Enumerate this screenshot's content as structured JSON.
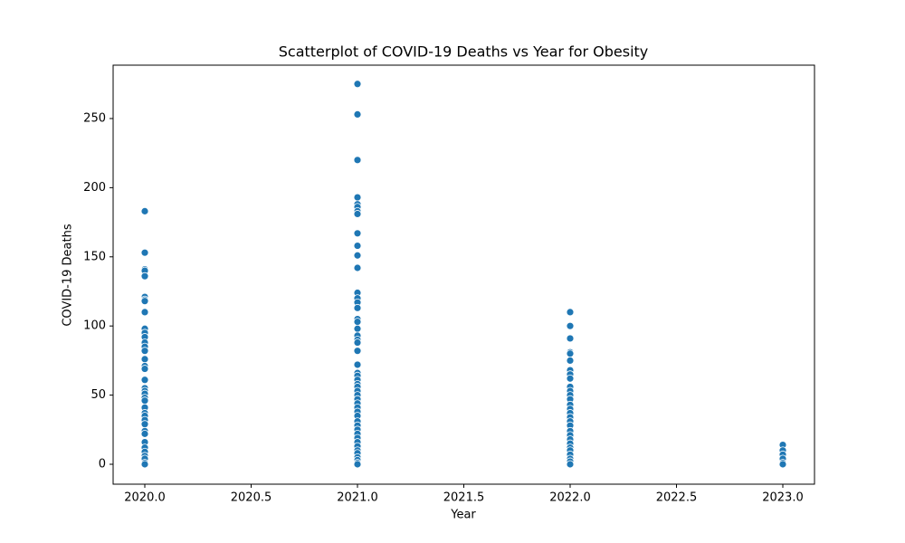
{
  "chart_data": {
    "type": "scatter",
    "title": "Scatterplot of COVID-19 Deaths vs Year for Obesity",
    "x_label": "Year",
    "y_label": "COVID-19 Deaths",
    "color": "#1f77b4",
    "x": [
      2020,
      2020,
      2020,
      2020,
      2020,
      2020,
      2020,
      2020,
      2020,
      2020,
      2020,
      2020,
      2020,
      2020,
      2020,
      2020,
      2020,
      2020,
      2020,
      2020,
      2020,
      2020,
      2020,
      2020,
      2020,
      2020,
      2020,
      2020,
      2020,
      2020,
      2020,
      2020,
      2020,
      2020,
      2020,
      2020,
      2020,
      2020,
      2021,
      2021,
      2021,
      2021,
      2021,
      2021,
      2021,
      2021,
      2021,
      2021,
      2021,
      2021,
      2021,
      2021,
      2021,
      2021,
      2021,
      2021,
      2021,
      2021,
      2021,
      2021,
      2021,
      2021,
      2021,
      2021,
      2021,
      2021,
      2021,
      2021,
      2021,
      2021,
      2021,
      2021,
      2021,
      2021,
      2021,
      2021,
      2021,
      2021,
      2021,
      2021,
      2021,
      2021,
      2021,
      2021,
      2021,
      2021,
      2021,
      2022,
      2022,
      2022,
      2022,
      2022,
      2022,
      2022,
      2022,
      2022,
      2022,
      2022,
      2022,
      2022,
      2022,
      2022,
      2022,
      2022,
      2022,
      2022,
      2022,
      2022,
      2022,
      2022,
      2022,
      2022,
      2022,
      2022,
      2022,
      2022,
      2023,
      2023,
      2023,
      2023,
      2023,
      2023
    ],
    "values": [
      183,
      153,
      141,
      140,
      136,
      121,
      119,
      118,
      110,
      98,
      95,
      92,
      88,
      85,
      82,
      76,
      71,
      69,
      61,
      55,
      53,
      51,
      48,
      46,
      41,
      37,
      35,
      32,
      29,
      24,
      22,
      16,
      12,
      9,
      6,
      4,
      1,
      0,
      275,
      253,
      220,
      193,
      188,
      186,
      183,
      181,
      167,
      158,
      151,
      142,
      124,
      120,
      117,
      113,
      105,
      103,
      98,
      93,
      90,
      88,
      82,
      72,
      66,
      64,
      61,
      58,
      56,
      53,
      50,
      47,
      44,
      41,
      38,
      35,
      31,
      28,
      25,
      22,
      19,
      16,
      13,
      10,
      8,
      5,
      3,
      1,
      0,
      110,
      100,
      91,
      81,
      80,
      75,
      68,
      65,
      62,
      56,
      53,
      50,
      47,
      43,
      40,
      37,
      34,
      31,
      28,
      24,
      21,
      18,
      15,
      12,
      10,
      7,
      4,
      2,
      0,
      14,
      10,
      7,
      4,
      1,
      0
    ],
    "xlim": [
      2019.851,
      2023.149
    ],
    "ylim": [
      -14.4,
      288.6
    ],
    "xticks": [
      {
        "value": 2020,
        "label": "2020.0"
      },
      {
        "value": 2020.5,
        "label": "2020.5"
      },
      {
        "value": 2021,
        "label": "2021.0"
      },
      {
        "value": 2021.5,
        "label": "2021.5"
      },
      {
        "value": 2022,
        "label": "2022.0"
      },
      {
        "value": 2022.5,
        "label": "2022.5"
      },
      {
        "value": 2023,
        "label": "2023.0"
      }
    ],
    "yticks": [
      0,
      50,
      100,
      150,
      200,
      250
    ]
  }
}
